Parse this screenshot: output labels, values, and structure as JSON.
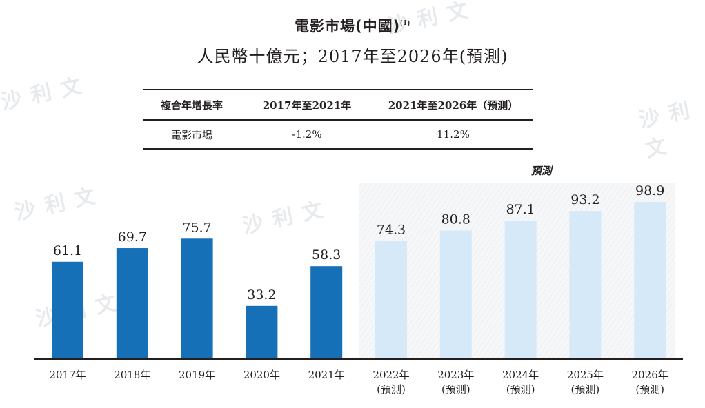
{
  "title": "電影市場(中國)",
  "title_note": "(1)",
  "subtitle": "人民幣十億元；2017年至2026年(預測)",
  "watermark": "沙利文",
  "cagr_table": {
    "headers": [
      "複合年增長率",
      "2017年至2021年",
      "2021年至2026年（預測）"
    ],
    "rows": [
      {
        "label": "電影市場",
        "values": [
          "-1.2%",
          "11.2%"
        ]
      }
    ]
  },
  "chart_data": {
    "type": "bar",
    "title": "電影市場(中國)",
    "ylabel": "人民幣十億元",
    "ylim": [
      0,
      100
    ],
    "grid": false,
    "forecast_label": "預測",
    "categories": [
      "2017年",
      "2018年",
      "2019年",
      "2020年",
      "2021年",
      "2022年",
      "2023年",
      "2024年",
      "2025年",
      "2026年"
    ],
    "category_sublabels": [
      "",
      "",
      "",
      "",
      "",
      "(預測)",
      "(預測)",
      "(預測)",
      "(預測)",
      "(預測)"
    ],
    "values": [
      61.1,
      69.7,
      75.7,
      33.2,
      58.3,
      74.3,
      80.8,
      87.1,
      93.2,
      98.9
    ],
    "value_labels": [
      "61.1",
      "69.7",
      "75.7",
      "33.2",
      "58.3",
      "74.3",
      "80.8",
      "87.1",
      "93.2",
      "98.9"
    ],
    "forecast": [
      false,
      false,
      false,
      false,
      false,
      true,
      true,
      true,
      true,
      true
    ],
    "colors": {
      "actual": "#1570b8",
      "forecast": "#d6e9f8",
      "forecast_bg": "#f5f6f7",
      "axis": "#231f20"
    }
  }
}
